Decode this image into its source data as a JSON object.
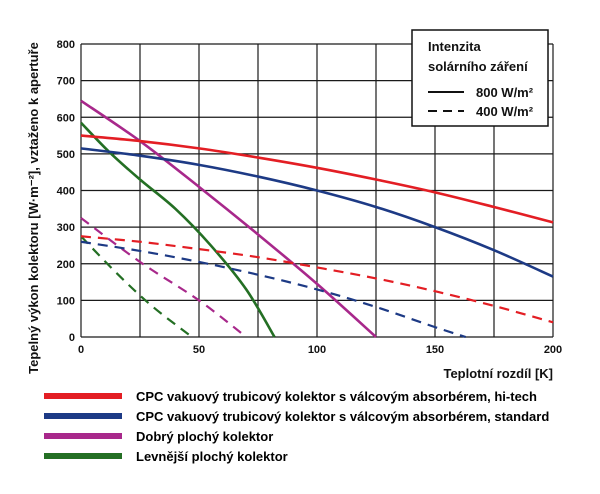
{
  "chart_data": {
    "type": "line",
    "xlabel": "Teplotní rozdíl [K]",
    "ylabel": "Tepelný výkon kolektoru [W·m⁻²], vztaženo k apertuře",
    "xlim": [
      0,
      200
    ],
    "ylim": [
      0,
      800
    ],
    "x_ticks": [
      "0",
      "50",
      "100",
      "150",
      "200"
    ],
    "y_ticks": [
      "0",
      "100",
      "200",
      "300",
      "400",
      "500",
      "600",
      "700",
      "800"
    ],
    "grid": true,
    "intensity_legend": {
      "title_line1": "Intenzita",
      "title_line2": "solárního záření",
      "solid_label": "800 W/m²",
      "dashed_label": "400 W/m²"
    },
    "series": [
      {
        "name": "CPC vakuový trubicový kolektor s válcovým absorbérem, hi-tech",
        "color": "#e31e24",
        "solid": {
          "x": [
            0,
            25,
            50,
            75,
            100,
            125,
            150,
            175,
            200
          ],
          "y": [
            550,
            535,
            515,
            490,
            462,
            430,
            395,
            355,
            313
          ]
        },
        "dashed": {
          "x": [
            0,
            25,
            50,
            75,
            100,
            125,
            150,
            175,
            200
          ],
          "y": [
            275,
            260,
            240,
            218,
            190,
            160,
            125,
            85,
            40
          ]
        }
      },
      {
        "name": "CPC vakuový trubicový kolektor s válcovým absorbérem, standard",
        "color": "#1d3a85",
        "solid": {
          "x": [
            0,
            25,
            50,
            75,
            100,
            125,
            150,
            175,
            200
          ],
          "y": [
            515,
            495,
            470,
            438,
            400,
            355,
            300,
            237,
            165
          ]
        },
        "dashed": {
          "x": [
            0,
            25,
            50,
            75,
            100,
            125,
            150,
            163
          ],
          "y": [
            260,
            235,
            205,
            170,
            130,
            82,
            27,
            0
          ]
        }
      },
      {
        "name": "Dobrý plochý kolektor",
        "color": "#a8288b",
        "solid": {
          "x": [
            0,
            25,
            50,
            75,
            100,
            125
          ],
          "y": [
            645,
            535,
            410,
            280,
            145,
            0
          ]
        },
        "dashed": {
          "x": [
            0,
            25,
            50,
            70
          ],
          "y": [
            325,
            205,
            100,
            0
          ]
        }
      },
      {
        "name": "Levnější plochý kolektor",
        "color": "#246f24",
        "solid": {
          "x": [
            0,
            12,
            25,
            40,
            55,
            70,
            82
          ],
          "y": [
            585,
            505,
            430,
            350,
            250,
            130,
            0
          ]
        },
        "dashed": {
          "x": [
            0,
            15,
            30,
            47
          ],
          "y": [
            275,
            175,
            85,
            0
          ]
        }
      }
    ]
  }
}
